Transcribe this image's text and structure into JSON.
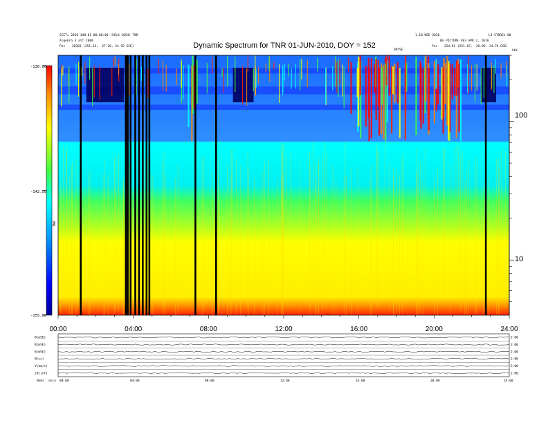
{
  "chart_data": {
    "type": "heatmap",
    "title": "Dynamic Spectrum for TNR 01-JUN-2010, DOY = 152",
    "header_left": {
      "line1": "SCET= 2010 JUN 01 00:00:00 (SCLK 1054) TNR",
      "line2": "Algebra 3 alt 2000",
      "line3_label": "Pos",
      "line3_value": "28383 (251.34, -27.28, 24.59 GSE)"
    },
    "header_right": {
      "line1": "1.10 WED 2010",
      "line1b": "L3 STOREn 00",
      "line2": "BG PICTURE V03 APR 2, 2010",
      "line3_label": "Pos",
      "line3_value": "254.81 (251.87, -28.85, 24.74 GSE)"
    },
    "event_marker_label": "DRYSE",
    "x_axis": {
      "ticks": [
        "00:00",
        "04:00",
        "08:00",
        "12:00",
        "16:00",
        "20:00",
        "24:00"
      ],
      "range_hours": [
        0,
        24
      ]
    },
    "y_axis": {
      "scale": "log",
      "unit": "kHz",
      "ticks": [
        "100",
        "10"
      ],
      "range": [
        4,
        300
      ]
    },
    "colorbar": {
      "label": "TNR",
      "ticks": [
        "-130.00",
        "-142.50",
        "-155.00"
      ],
      "range": [
        -155,
        -130
      ],
      "colors": [
        "#00009a",
        "#0000ff",
        "#0080ff",
        "#00ffff",
        "#40ff40",
        "#ffff00",
        "#ff8000",
        "#ff0000"
      ]
    },
    "data_gaps_hours": [
      1.2,
      3.6,
      3.7,
      3.85,
      4.1,
      4.3,
      4.5,
      4.7,
      4.85,
      7.3,
      8.4,
      22.75
    ]
  },
  "bottom_panel": {
    "rows": [
      {
        "label": "B(mSE)",
        "right_value": "2.00"
      },
      {
        "label": "B(mSE)",
        "right_value": "2.00"
      },
      {
        "label": "B(mSE)",
        "right_value": "2.00"
      },
      {
        "label": "N(cc)",
        "right_value": "2.00"
      },
      {
        "label": "V(km/s)",
        "right_value": "2.00"
      },
      {
        "label": "|B|(nT)",
        "right_value": "2.00"
      }
    ],
    "time_ticks": [
      "00:00",
      "04:00",
      "08:00",
      "12:00",
      "16:00",
      "20:00",
      "24:00"
    ],
    "footer_label": "Nobs",
    "footer_value": "only"
  }
}
